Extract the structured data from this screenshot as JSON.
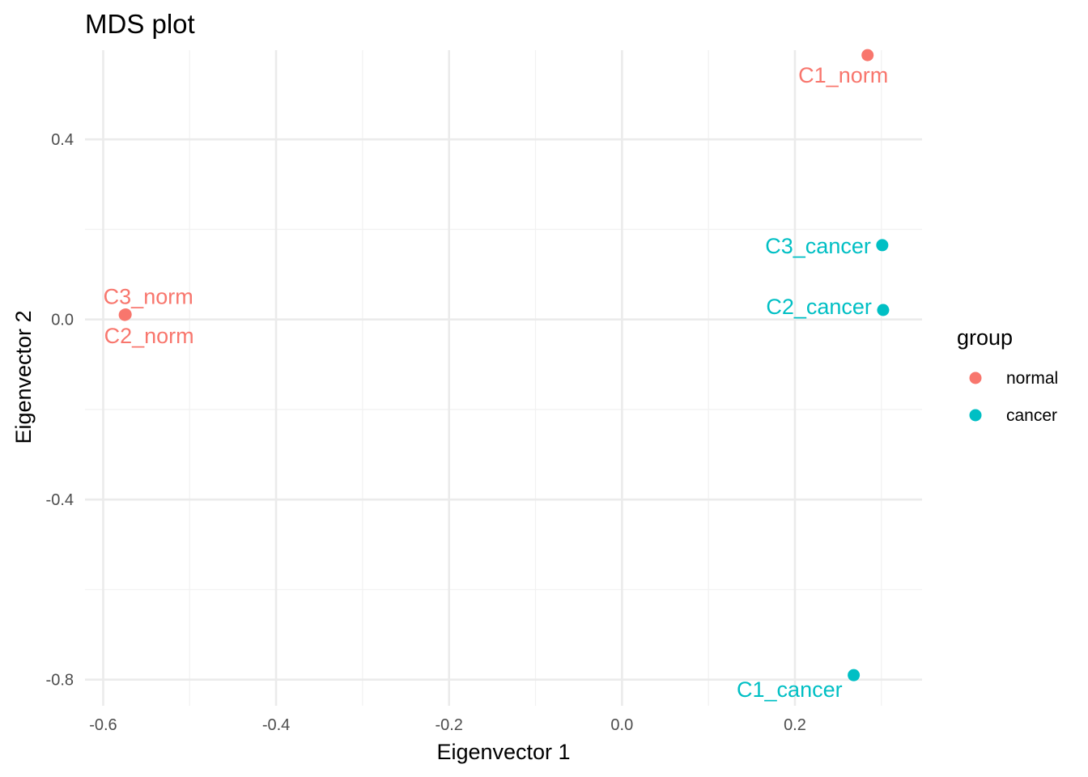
{
  "chart_data": {
    "type": "scatter",
    "title": "MDS plot",
    "xlabel": "Eigenvector 1",
    "ylabel": "Eigenvector 2",
    "xlim": [
      -0.621,
      0.347
    ],
    "ylim": [
      -0.858,
      0.598
    ],
    "x_ticks": [
      -0.6,
      -0.4,
      -0.2,
      0.0,
      0.2
    ],
    "x_tick_labels": [
      "-0.6",
      "-0.4",
      "-0.2",
      "0.0",
      "0.2"
    ],
    "y_ticks": [
      -0.8,
      -0.4,
      0.0,
      0.4
    ],
    "y_tick_labels": [
      "-0.8",
      "-0.4",
      "0.0",
      "0.4"
    ],
    "grid": true,
    "legend": {
      "title": "group",
      "position": "right",
      "entries": [
        {
          "label": "normal",
          "color": "#F8766D"
        },
        {
          "label": "cancer",
          "color": "#00BFC4"
        }
      ]
    },
    "series": [
      {
        "name": "normal",
        "color": "#F8766D",
        "points": [
          {
            "label": "C1_norm",
            "x": 0.284,
            "y": 0.587
          },
          {
            "label": "C2_norm",
            "x": -0.575,
            "y": 0.01
          },
          {
            "label": "C3_norm",
            "x": -0.574,
            "y": 0.011
          }
        ]
      },
      {
        "name": "cancer",
        "color": "#00BFC4",
        "points": [
          {
            "label": "C1_cancer",
            "x": 0.268,
            "y": -0.79
          },
          {
            "label": "C2_cancer",
            "x": 0.302,
            "y": 0.021
          },
          {
            "label": "C3_cancer",
            "x": 0.301,
            "y": 0.165
          }
        ]
      }
    ]
  }
}
